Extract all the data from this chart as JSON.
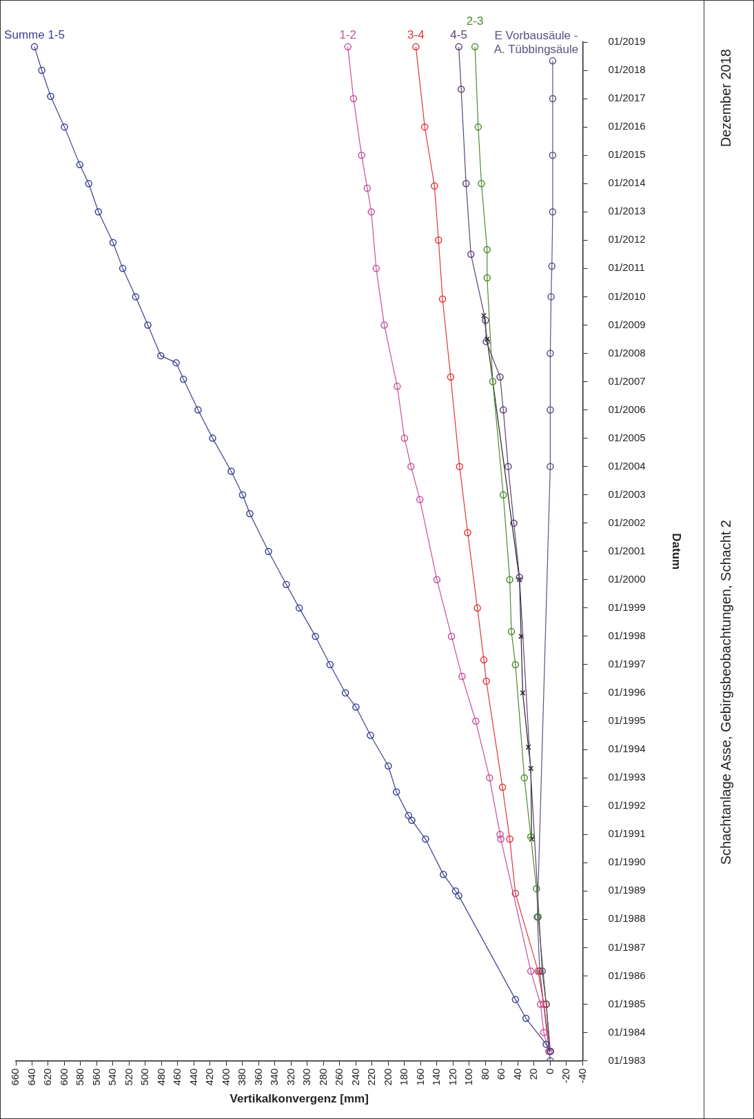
{
  "chart_data": {
    "type": "line",
    "orientation": "horizontal",
    "xlabel": "Vertikalkonvergenz [mm]",
    "ylabel": "Datum",
    "ylim": [
      "1983-01",
      "2019-01"
    ],
    "yticks": [
      {
        "value": "1983-01",
        "label": "01/1983"
      },
      {
        "value": "1984-01",
        "label": "01/1984"
      },
      {
        "value": "1985-01",
        "label": "01/1985"
      },
      {
        "value": "1986-01",
        "label": "01/1986"
      },
      {
        "value": "1987-01",
        "label": "01/1987"
      },
      {
        "value": "1988-01",
        "label": "01/1988"
      },
      {
        "value": "1989-01",
        "label": "01/1989"
      },
      {
        "value": "1990-01",
        "label": "01/1990"
      },
      {
        "value": "1991-01",
        "label": "01/1991"
      },
      {
        "value": "1992-01",
        "label": "01/1992"
      },
      {
        "value": "1993-01",
        "label": "01/1993"
      },
      {
        "value": "1994-01",
        "label": "01/1994"
      },
      {
        "value": "1995-01",
        "label": "01/1995"
      },
      {
        "value": "1996-01",
        "label": "01/1996"
      },
      {
        "value": "1997-01",
        "label": "01/1997"
      },
      {
        "value": "1998-01",
        "label": "01/1998"
      },
      {
        "value": "1999-01",
        "label": "01/1999"
      },
      {
        "value": "2000-01",
        "label": "01/2000"
      },
      {
        "value": "2001-01",
        "label": "01/2001"
      },
      {
        "value": "2002-01",
        "label": "01/2002"
      },
      {
        "value": "2003-01",
        "label": "01/2003"
      },
      {
        "value": "2004-01",
        "label": "01/2004"
      },
      {
        "value": "2005-01",
        "label": "01/2005"
      },
      {
        "value": "2006-01",
        "label": "01/2006"
      },
      {
        "value": "2007-01",
        "label": "01/2007"
      },
      {
        "value": "2008-01",
        "label": "01/2008"
      },
      {
        "value": "2009-01",
        "label": "01/2009"
      },
      {
        "value": "2010-01",
        "label": "01/2010"
      },
      {
        "value": "2011-01",
        "label": "01/2011"
      },
      {
        "value": "2012-01",
        "label": "01/2012"
      },
      {
        "value": "2013-01",
        "label": "01/2013"
      },
      {
        "value": "2014-01",
        "label": "01/2014"
      },
      {
        "value": "2015-01",
        "label": "01/2015"
      },
      {
        "value": "2016-01",
        "label": "01/2016"
      },
      {
        "value": "2017-01",
        "label": "01/2017"
      },
      {
        "value": "2018-01",
        "label": "01/2018"
      },
      {
        "value": "2019-01",
        "label": "01/2019"
      }
    ],
    "xlim": [
      660,
      -40
    ],
    "xticks": [
      660,
      640,
      620,
      600,
      580,
      560,
      540,
      520,
      500,
      480,
      460,
      440,
      420,
      400,
      380,
      360,
      340,
      320,
      300,
      280,
      260,
      240,
      220,
      200,
      180,
      160,
      140,
      120,
      100,
      80,
      60,
      40,
      20,
      0,
      -20,
      -40
    ],
    "grid": false,
    "legend": false,
    "marker": "circle",
    "line_style": "solid",
    "series": [
      {
        "name": "Summe 1-5",
        "color": "#3a3f8f",
        "x": [
          "1983-05",
          "1983-08",
          "1984-07",
          "1985-03",
          "1988-11",
          "1989-01",
          "1989-08",
          "1990-11",
          "1991-07",
          "1991-09",
          "1992-07",
          "1993-06",
          "1994-07",
          "1995-07",
          "1996-01",
          "1997-01",
          "1998-01",
          "1999-01",
          "1999-11",
          "2001-01",
          "2002-05",
          "2003-01",
          "2003-11",
          "2005-01",
          "2006-01",
          "2007-02",
          "2007-09",
          "2007-12",
          "2009-01",
          "2010-01",
          "2011-01",
          "2011-12",
          "2013-01",
          "2014-01",
          "2014-09",
          "2016-01",
          "2017-02",
          "2018-01",
          "2018-11"
        ],
        "values": [
          0,
          5,
          30,
          43,
          113,
          117,
          132,
          154,
          171,
          175,
          190,
          200,
          222,
          240,
          253,
          272,
          290,
          310,
          326,
          348,
          371,
          380,
          394,
          417,
          435,
          453,
          462,
          481,
          497,
          512,
          528,
          540,
          558,
          570,
          581,
          600,
          617,
          628,
          637
        ]
      },
      {
        "name": "1-2",
        "color": "#c4509a",
        "x": [
          "1983-05",
          "1984-01",
          "1985-01",
          "1986-03",
          "1990-11",
          "1991-01",
          "1993-01",
          "1995-01",
          "1996-08",
          "1998-01",
          "2000-01",
          "2002-11",
          "2004-01",
          "2005-01",
          "2006-11",
          "2009-01",
          "2011-01",
          "2013-01",
          "2013-11",
          "2015-01",
          "2017-01",
          "2018-11"
        ],
        "values": [
          2,
          8,
          12,
          24,
          61,
          62,
          75,
          92,
          109,
          122,
          140,
          161,
          172,
          180,
          189,
          205,
          215,
          221,
          226,
          233,
          243,
          250
        ]
      },
      {
        "name": "3-4",
        "color": "#e0353a",
        "x": [
          "1983-05",
          "1985-01",
          "1986-03",
          "1988-12",
          "1990-11",
          "1992-09",
          "1996-06",
          "1997-03",
          "1999-01",
          "2001-09",
          "2004-01",
          "2007-03",
          "2009-12",
          "2012-01",
          "2013-12",
          "2016-01",
          "2018-11"
        ],
        "values": [
          0,
          8,
          15,
          43,
          50,
          59,
          79,
          82,
          90,
          102,
          112,
          123,
          133,
          138,
          143,
          155,
          166
        ]
      },
      {
        "name": "4-5",
        "color": "#5c3f73",
        "x": [
          "1983-05",
          "1985-01",
          "1986-03",
          "2000-02",
          "2002-01",
          "2004-01",
          "2006-01",
          "2007-03",
          "2008-06",
          "2009-03",
          "2011-07",
          "2014-01",
          "2017-05",
          "2018-11"
        ],
        "values": [
          0,
          5,
          10,
          38,
          45,
          52,
          58,
          62,
          79,
          80,
          98,
          104,
          110,
          113
        ]
      },
      {
        "name": "2-3",
        "color": "#4a8a2a",
        "x": [
          "1983-05",
          "1985-01",
          "1988-02",
          "1989-02",
          "1990-12",
          "1993-01",
          "1997-01",
          "1998-03",
          "2000-01",
          "2003-01",
          "2007-01",
          "2010-09",
          "2011-09",
          "2014-01",
          "2016-01",
          "2018-11"
        ],
        "values": [
          0,
          5,
          15,
          17,
          24,
          32,
          43,
          48,
          50,
          58,
          71,
          78,
          78,
          85,
          89,
          93
        ]
      },
      {
        "color": "#222222",
        "marker": "cross",
        "x": [
          "1990-11",
          "1993-05",
          "1994-02",
          "1996-01",
          "1998-01",
          "2000-01",
          "2008-07",
          "2009-05"
        ],
        "values": [
          23,
          24,
          27,
          34,
          36,
          38,
          78,
          82
        ]
      },
      {
        "name": "E Vorbausäule - A. Tübbingsäule",
        "color": "#5a5080",
        "x": [
          "1983-01",
          "1986-03",
          "1988-02",
          "2004-01",
          "2006-01",
          "2008-01",
          "2010-01",
          "2011-02",
          "2013-01",
          "2015-01",
          "2017-01",
          "2018-05"
        ],
        "values": [
          0,
          13,
          16,
          0,
          0,
          0,
          -1,
          -2,
          -3,
          -3,
          -3,
          -3
        ]
      }
    ],
    "annotations": [
      "Schachtanlage Asse, Gebirgsbeobachtungen, Schacht 2",
      "Dezember 2018"
    ]
  }
}
